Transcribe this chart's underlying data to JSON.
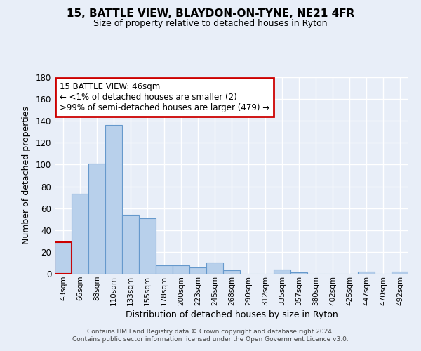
{
  "title": "15, BATTLE VIEW, BLAYDON-ON-TYNE, NE21 4FR",
  "subtitle": "Size of property relative to detached houses in Ryton",
  "xlabel": "Distribution of detached houses by size in Ryton",
  "ylabel": "Number of detached properties",
  "bar_color": "#b8d0eb",
  "bar_edge_color": "#6699cc",
  "highlight_color": "#cc0000",
  "categories": [
    "43sqm",
    "66sqm",
    "88sqm",
    "110sqm",
    "133sqm",
    "155sqm",
    "178sqm",
    "200sqm",
    "223sqm",
    "245sqm",
    "268sqm",
    "290sqm",
    "312sqm",
    "335sqm",
    "357sqm",
    "380sqm",
    "402sqm",
    "425sqm",
    "447sqm",
    "470sqm",
    "492sqm"
  ],
  "values": [
    29,
    73,
    101,
    136,
    54,
    51,
    8,
    8,
    6,
    10,
    3,
    0,
    0,
    4,
    1,
    0,
    0,
    0,
    2,
    0,
    2
  ],
  "ylim": [
    0,
    180
  ],
  "yticks": [
    0,
    20,
    40,
    60,
    80,
    100,
    120,
    140,
    160,
    180
  ],
  "annotation_line1": "15 BATTLE VIEW: 46sqm",
  "annotation_line2": "← <1% of detached houses are smaller (2)",
  "annotation_line3": ">99% of semi-detached houses are larger (479) →",
  "highlight_bar_index": 0,
  "footer_line1": "Contains HM Land Registry data © Crown copyright and database right 2024.",
  "footer_line2": "Contains public sector information licensed under the Open Government Licence v3.0.",
  "background_color": "#e8eef8",
  "grid_color": "#ffffff",
  "annotation_box_color": "#ffffff",
  "annotation_box_edge": "#cc0000"
}
